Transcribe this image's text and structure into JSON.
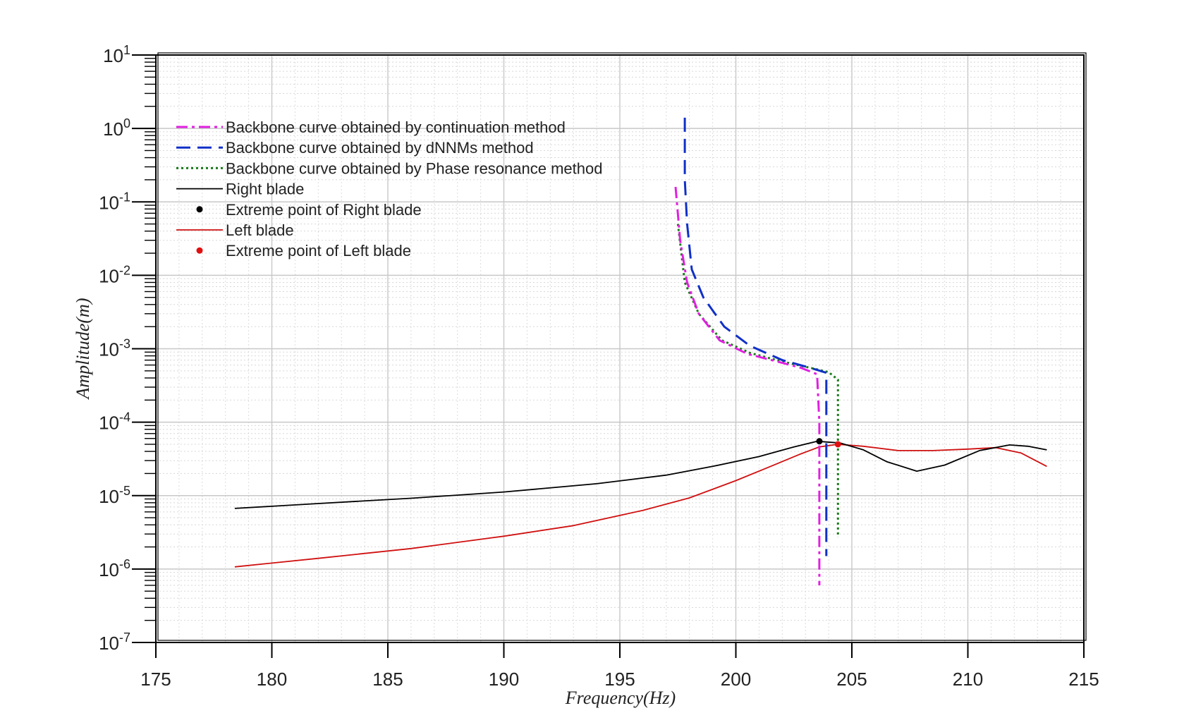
{
  "chart_data": {
    "type": "line",
    "title": "",
    "xlabel": "Frequency(Hz)",
    "ylabel": "Amplitude(m)",
    "xlim": [
      175,
      215
    ],
    "ylim": [
      1e-07,
      10
    ],
    "yscale": "log",
    "grid": true,
    "legend_position": "top-left",
    "x_ticks": [
      "175",
      "180",
      "185",
      "190",
      "195",
      "200",
      "205",
      "210",
      "215"
    ],
    "x_tick_values": [
      175,
      180,
      185,
      190,
      195,
      200,
      205,
      210,
      215
    ],
    "y_ticks": [
      {
        "value": 10,
        "base": "10",
        "exp": "1"
      },
      {
        "value": 1,
        "base": "10",
        "exp": "0"
      },
      {
        "value": 0.1,
        "base": "10",
        "exp": "-1"
      },
      {
        "value": 0.01,
        "base": "10",
        "exp": "-2"
      },
      {
        "value": 0.001,
        "base": "10",
        "exp": "-3"
      },
      {
        "value": 0.0001,
        "base": "10",
        "exp": "-4"
      },
      {
        "value": 1e-05,
        "base": "10",
        "exp": "-5"
      },
      {
        "value": 1e-06,
        "base": "10",
        "exp": "-6"
      },
      {
        "value": 1e-07,
        "base": "10",
        "exp": "-7"
      }
    ],
    "series": [
      {
        "name": "Backbone curve obtained by continuation method",
        "color": "#e020e0",
        "style": "dashdot",
        "kind": "line",
        "points": [
          [
            197.4,
            0.16
          ],
          [
            197.6,
            0.03
          ],
          [
            197.9,
            0.008
          ],
          [
            198.4,
            0.003
          ],
          [
            199.3,
            0.0013
          ],
          [
            200.5,
            0.00085
          ],
          [
            201.7,
            0.00068
          ],
          [
            202.8,
            0.00055
          ],
          [
            203.5,
            0.00045
          ],
          [
            203.6,
            0.0001
          ],
          [
            203.6,
            1e-05
          ],
          [
            203.6,
            6e-07
          ]
        ]
      },
      {
        "name": "Backbone curve obtained by dNNMs method",
        "color": "#1030c8",
        "style": "dash",
        "kind": "line",
        "points": [
          [
            197.8,
            1.4
          ],
          [
            197.8,
            0.2
          ],
          [
            197.9,
            0.05
          ],
          [
            198.1,
            0.012
          ],
          [
            198.6,
            0.005
          ],
          [
            199.5,
            0.002
          ],
          [
            200.6,
            0.0011
          ],
          [
            202.0,
            0.0007
          ],
          [
            203.2,
            0.00055
          ],
          [
            203.9,
            0.00047
          ],
          [
            203.9,
            5e-05
          ],
          [
            203.9,
            1.5e-06
          ]
        ]
      },
      {
        "name": "Backbone curve obtained by Phase resonance method",
        "color": "#1a7a1a",
        "style": "dot",
        "kind": "line",
        "points": [
          [
            197.5,
            0.05
          ],
          [
            197.8,
            0.008
          ],
          [
            198.4,
            0.003
          ],
          [
            199.4,
            0.0013
          ],
          [
            200.6,
            0.00088
          ],
          [
            201.9,
            0.00068
          ],
          [
            203.2,
            0.00055
          ],
          [
            204.0,
            0.00048
          ],
          [
            204.4,
            0.00038
          ],
          [
            204.4,
            1e-05
          ],
          [
            204.4,
            2.7e-06
          ]
        ]
      },
      {
        "name": "Right blade",
        "color": "#000000",
        "style": "solid",
        "kind": "line",
        "points": [
          [
            178.4,
            6.7e-06
          ],
          [
            182,
            7.8e-06
          ],
          [
            186,
            9.2e-06
          ],
          [
            190,
            1.12e-05
          ],
          [
            194,
            1.45e-05
          ],
          [
            197,
            1.9e-05
          ],
          [
            199,
            2.5e-05
          ],
          [
            201,
            3.4e-05
          ],
          [
            202.5,
            4.6e-05
          ],
          [
            203.5,
            5.5e-05
          ],
          [
            204.5,
            5.2e-05
          ],
          [
            205.5,
            4.2e-05
          ],
          [
            206.5,
            2.9e-05
          ],
          [
            207.8,
            2.15e-05
          ],
          [
            209,
            2.6e-05
          ],
          [
            210.5,
            4.1e-05
          ],
          [
            211.8,
            4.9e-05
          ],
          [
            212.6,
            4.7e-05
          ],
          [
            213.4,
            4.2e-05
          ]
        ]
      },
      {
        "name": "Extreme point of Right blade",
        "color": "#000000",
        "kind": "point",
        "points": [
          [
            203.6,
            5.5e-05
          ]
        ]
      },
      {
        "name": "Left blade",
        "color": "#d01010",
        "style": "solid",
        "kind": "line",
        "points": [
          [
            178.4,
            1.07e-06
          ],
          [
            182,
            1.4e-06
          ],
          [
            186,
            1.9e-06
          ],
          [
            190,
            2.8e-06
          ],
          [
            193,
            3.9e-06
          ],
          [
            196,
            6.3e-06
          ],
          [
            198,
            9.3e-06
          ],
          [
            200,
            1.6e-05
          ],
          [
            201.5,
            2.5e-05
          ],
          [
            202.8,
            3.7e-05
          ],
          [
            203.6,
            4.6e-05
          ],
          [
            204.4,
            5e-05
          ],
          [
            205.5,
            4.7e-05
          ],
          [
            207,
            4.1e-05
          ],
          [
            208.5,
            4.1e-05
          ],
          [
            210,
            4.3e-05
          ],
          [
            211.2,
            4.5e-05
          ],
          [
            212.3,
            3.8e-05
          ],
          [
            213.4,
            2.5e-05
          ]
        ]
      },
      {
        "name": "Extreme point of Left blade",
        "color": "#e01010",
        "kind": "point",
        "points": [
          [
            204.4,
            5e-05
          ]
        ]
      }
    ]
  }
}
